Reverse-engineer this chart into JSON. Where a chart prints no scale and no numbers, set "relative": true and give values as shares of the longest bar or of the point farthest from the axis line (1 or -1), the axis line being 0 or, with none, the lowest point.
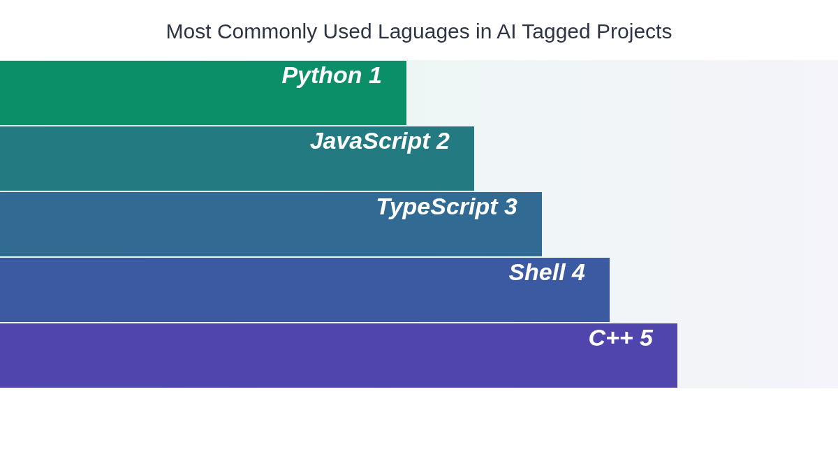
{
  "chart_data": {
    "type": "bar",
    "orientation": "horizontal",
    "relative": true,
    "title": "Most Commonly Used Laguages in AI Tagged Projects",
    "categories": [
      "Python 1",
      "JavaScript 2",
      "TypeScript 3",
      "Shell 4",
      "C++ 5"
    ],
    "values": [
      0.6,
      0.7,
      0.8,
      0.9,
      1
    ],
    "colors": [
      "#0b8f68",
      "#237a80",
      "#316a92",
      "#3b5aa2",
      "#5044ad"
    ],
    "legend": false
  }
}
